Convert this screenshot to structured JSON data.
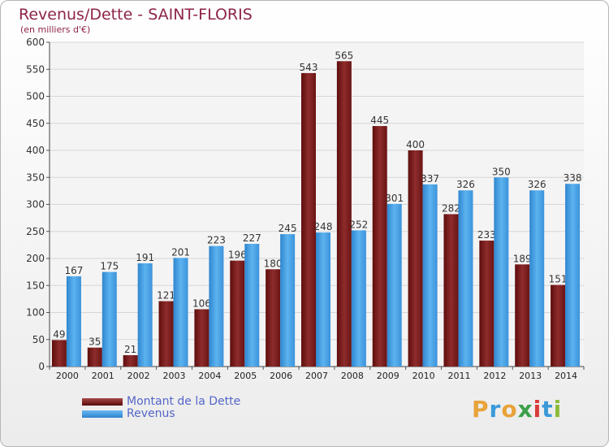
{
  "header": {
    "title": "Revenus/Dette - SAINT-FLORIS",
    "subtitle": "(en milliers d'€)"
  },
  "chart_data": {
    "type": "bar",
    "categories": [
      "2000",
      "2001",
      "2002",
      "2003",
      "2004",
      "2005",
      "2006",
      "2007",
      "2008",
      "2009",
      "2010",
      "2011",
      "2012",
      "2013",
      "2014"
    ],
    "series": [
      {
        "name": "Montant de la Dette",
        "values": [
          49,
          35,
          21,
          121,
          106,
          196,
          180,
          543,
          565,
          445,
          400,
          282,
          233,
          189,
          151
        ],
        "color": "#7a1c1c"
      },
      {
        "name": "Revenus",
        "values": [
          167,
          175,
          191,
          201,
          223,
          227,
          245,
          248,
          252,
          301,
          337,
          326,
          350,
          326,
          338
        ],
        "color": "#4da3e6"
      }
    ],
    "ylim": [
      0,
      600
    ],
    "yticks": [
      0,
      50,
      100,
      150,
      200,
      250,
      300,
      350,
      400,
      450,
      500,
      550,
      600
    ],
    "grid": true,
    "legend_position": "bottom-left"
  },
  "legend": {
    "items": [
      "Montant de la Dette",
      "Revenus"
    ]
  },
  "logo": {
    "letters": [
      "P",
      "r",
      "o",
      "x",
      "i",
      "t",
      "i"
    ],
    "colors": [
      "#e8a33a",
      "#3a9ad9",
      "#e8a33a",
      "#3aa04a",
      "#d93a3a",
      "#3a9ad9",
      "#8dbb3a"
    ]
  }
}
